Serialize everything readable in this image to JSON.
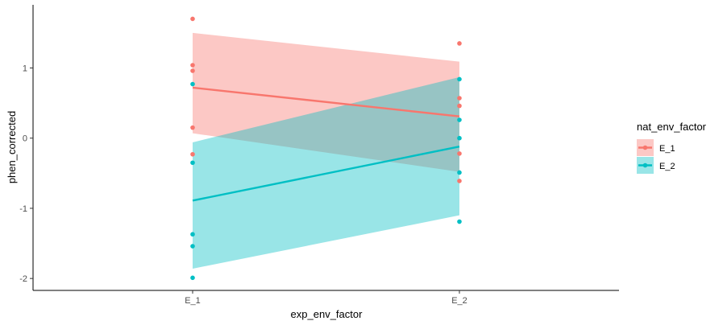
{
  "chart_data": {
    "type": "scatter",
    "xlabel": "exp_env_factor",
    "ylabel": "phen_corrected",
    "categories": [
      "E_1",
      "E_2"
    ],
    "y_ticks": [
      -2,
      -1,
      0,
      1
    ],
    "ylim": [
      -2.17,
      1.9
    ],
    "grid": false,
    "legend": {
      "title": "nat_env_factor",
      "position": "right"
    },
    "series": [
      {
        "name": "E_1",
        "color": "#F8766D",
        "points": [
          {
            "x": "E_1",
            "y": 1.7
          },
          {
            "x": "E_1",
            "y": 1.04
          },
          {
            "x": "E_1",
            "y": 0.96
          },
          {
            "x": "E_1",
            "y": 0.15
          },
          {
            "x": "E_1",
            "y": -0.23
          },
          {
            "x": "E_2",
            "y": 1.35
          },
          {
            "x": "E_2",
            "y": 0.57
          },
          {
            "x": "E_2",
            "y": 0.46
          },
          {
            "x": "E_2",
            "y": -0.22
          },
          {
            "x": "E_2",
            "y": -0.61
          }
        ],
        "fit": {
          "E_1": 0.72,
          "E_2": 0.31
        },
        "ci_lower": {
          "E_1": 0.07,
          "E_2": -0.48
        },
        "ci_upper": {
          "E_1": 1.5,
          "E_2": 1.09
        }
      },
      {
        "name": "E_2",
        "color": "#00BFC4",
        "points": [
          {
            "x": "E_1",
            "y": 0.77
          },
          {
            "x": "E_1",
            "y": -0.35
          },
          {
            "x": "E_1",
            "y": -1.37
          },
          {
            "x": "E_1",
            "y": -1.54
          },
          {
            "x": "E_1",
            "y": -1.99
          },
          {
            "x": "E_2",
            "y": 0.84
          },
          {
            "x": "E_2",
            "y": 0.26
          },
          {
            "x": "E_2",
            "y": 0.0
          },
          {
            "x": "E_2",
            "y": -0.49
          },
          {
            "x": "E_2",
            "y": -1.19
          }
        ],
        "fit": {
          "E_1": -0.89,
          "E_2": -0.12
        },
        "ci_lower": {
          "E_1": -1.86,
          "E_2": -1.1
        },
        "ci_upper": {
          "E_1": -0.06,
          "E_2": 0.87
        }
      }
    ]
  }
}
